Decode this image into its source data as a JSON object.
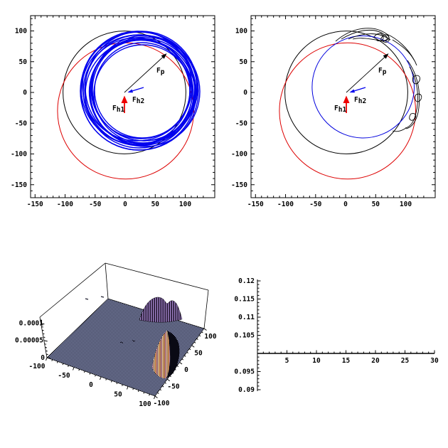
{
  "app": {
    "description": "Four-panel scientific graphics output (orbit plots, 3D density surface, time-series axes)",
    "background": "#ffffff"
  },
  "colors": {
    "frame": "#000000",
    "orbit_black": "#000000",
    "orbit_red": "#dd0000",
    "orbit_blue": "#0000ee",
    "surface_light": "#a9b4e2",
    "surface_dark": "#10101c",
    "peak_purple": "#9d7fc4",
    "peak_orange": "#f0a261",
    "peak_pink": "#d795a5",
    "peak_shadow": "#0a0a14",
    "arrow_red": "#ee0000",
    "arrow_blue": "#0000ee"
  },
  "chart_data": [
    {
      "id": "orbit-plot-left",
      "type": "line",
      "frame": true,
      "xlim": [
        -157,
        150
      ],
      "ylim": [
        -171,
        125
      ],
      "x_tick_labels": [
        "-150",
        "-100",
        "-50",
        "0",
        "50",
        "100"
      ],
      "y_tick_labels": [
        "100",
        "50",
        "0",
        "-50",
        "-100",
        "-150"
      ],
      "series": [
        {
          "name": "black reference circle",
          "shape": "circle",
          "color": "#000000",
          "center": [
            0,
            0
          ],
          "radius": 101
        },
        {
          "name": "red reference circle",
          "shape": "circle",
          "color": "#dd0000",
          "center": [
            2,
            -30
          ],
          "radius": 112
        },
        {
          "name": "blue precessing orbit band",
          "shape": "orbit-band",
          "color": "#0000ee",
          "center": [
            22,
            8
          ],
          "inner_radius": 72,
          "outer_radius": 95,
          "loops": 16
        }
      ],
      "annotations": [
        {
          "label": "Fp",
          "label_main": "F",
          "label_sub": "p",
          "color": "#000000",
          "vector_from": [
            0,
            0
          ],
          "vector_to": [
            69,
            62
          ]
        },
        {
          "label": "Fh2",
          "label_main": "F",
          "label_sub": "h2",
          "color": "#0000ee",
          "vector_from": [
            31,
            8
          ],
          "vector_to": [
            6,
            0
          ]
        },
        {
          "label": "Fh1",
          "label_main": "F",
          "label_sub": "h1",
          "color": "#ee0000",
          "vector_from": [
            0,
            -33
          ],
          "vector_to": [
            0,
            -5
          ]
        }
      ]
    },
    {
      "id": "orbit-plot-right",
      "type": "line",
      "frame": true,
      "xlim": [
        -157,
        150
      ],
      "ylim": [
        -171,
        125
      ],
      "x_tick_labels": [
        "-150",
        "-100",
        "-50",
        "0",
        "50",
        "100"
      ],
      "y_tick_labels": [
        "100",
        "50",
        "0",
        "-50",
        "-100",
        "-150"
      ],
      "series": [
        {
          "name": "black perturbed trajectory",
          "shape": "trajectory",
          "color": "#000000",
          "base_circle": {
            "center": [
              0,
              0
            ],
            "radius": 101
          },
          "loop_clusters": [
            {
              "x_range": [
                5,
                60
              ],
              "y_range": [
                88,
                102
              ]
            },
            {
              "x_range": [
                95,
                115
              ],
              "y_range": [
                -55,
                35
              ]
            }
          ]
        },
        {
          "name": "red reference circle",
          "shape": "circle",
          "color": "#dd0000",
          "center": [
            2,
            -30
          ],
          "radius": 112
        },
        {
          "name": "blue reference circle",
          "shape": "circle",
          "color": "#0000ee",
          "center": [
            28,
            9
          ],
          "radius": 84
        }
      ],
      "annotations": [
        {
          "label": "Fp",
          "label_main": "F",
          "label_sub": "p",
          "color": "#000000",
          "vector_from": [
            0,
            0
          ],
          "vector_to": [
            69,
            62
          ]
        },
        {
          "label": "Fh2",
          "label_main": "F",
          "label_sub": "h2",
          "color": "#0000ee",
          "vector_from": [
            31,
            8
          ],
          "vector_to": [
            6,
            0
          ]
        },
        {
          "label": "Fh1",
          "label_main": "F",
          "label_sub": "h1",
          "color": "#ee0000",
          "vector_from": [
            0,
            -33
          ],
          "vector_to": [
            0,
            -5
          ]
        }
      ]
    },
    {
      "id": "density-surface-3d",
      "type": "surface3d",
      "xlim": [
        -100,
        100
      ],
      "ylim": [
        -100,
        100
      ],
      "zlim": [
        0,
        0.0001
      ],
      "x_tick_labels": [
        "-100",
        "-50",
        "0",
        "50",
        "100"
      ],
      "y_tick_labels": [
        "-100",
        "-50",
        "0",
        "50",
        "100"
      ],
      "z_tick_labels": [
        "0",
        "0.00005",
        "0.0001"
      ],
      "base_value": 0,
      "peaks": [
        {
          "center": [
            55,
            65
          ],
          "height": 5e-05,
          "style": "purple striped peak above back edge"
        },
        {
          "center": [
            100,
            -20
          ],
          "height": 0.0001,
          "style": "orange-pink striped peak with black shadow side"
        }
      ]
    },
    {
      "id": "time-series-axes",
      "type": "line",
      "xlim": [
        0,
        30
      ],
      "ylim": [
        0.09,
        0.12
      ],
      "axes_origin": [
        0,
        0.1
      ],
      "x_tick_labels": [
        "5",
        "10",
        "15",
        "20",
        "25",
        "30"
      ],
      "y_tick_labels": [
        "0.09",
        "0.095",
        "0.105",
        "0.11",
        "0.115",
        "0.12"
      ],
      "series": [
        {
          "name": "flat line coincident with x-axis",
          "color": "#000000",
          "x": [
            0,
            30
          ],
          "values": [
            0.1,
            0.1
          ]
        }
      ]
    }
  ]
}
